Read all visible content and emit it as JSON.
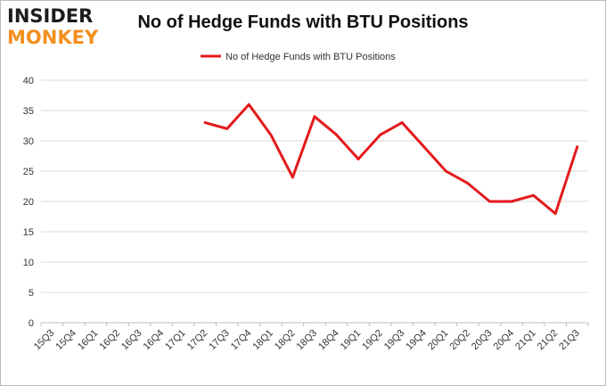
{
  "logo": {
    "line1": "INSIDER",
    "line2": "MONKEY"
  },
  "chart_data": {
    "type": "line",
    "title": "No of Hedge Funds with BTU Positions",
    "xlabel": "",
    "ylabel": "",
    "ylim": [
      0,
      40
    ],
    "yticks": [
      0,
      5,
      10,
      15,
      20,
      25,
      30,
      35,
      40
    ],
    "grid": "horizontal",
    "legend": "top-center",
    "categories": [
      "15Q3",
      "15Q4",
      "16Q1",
      "16Q2",
      "16Q3",
      "16Q4",
      "17Q1",
      "17Q2",
      "17Q3",
      "17Q4",
      "18Q1",
      "18Q2",
      "18Q3",
      "18Q4",
      "19Q1",
      "19Q2",
      "19Q3",
      "19Q4",
      "20Q1",
      "20Q2",
      "20Q3",
      "20Q4",
      "21Q1",
      "21Q2",
      "21Q3"
    ],
    "series": [
      {
        "name": "No of Hedge Funds with BTU Positions",
        "color": "#e31a1c",
        "values": [
          null,
          null,
          null,
          null,
          null,
          null,
          null,
          33,
          32,
          36,
          31,
          24,
          34,
          31,
          27,
          31,
          33,
          29,
          25,
          23,
          20,
          20,
          21,
          18,
          29
        ]
      }
    ]
  }
}
